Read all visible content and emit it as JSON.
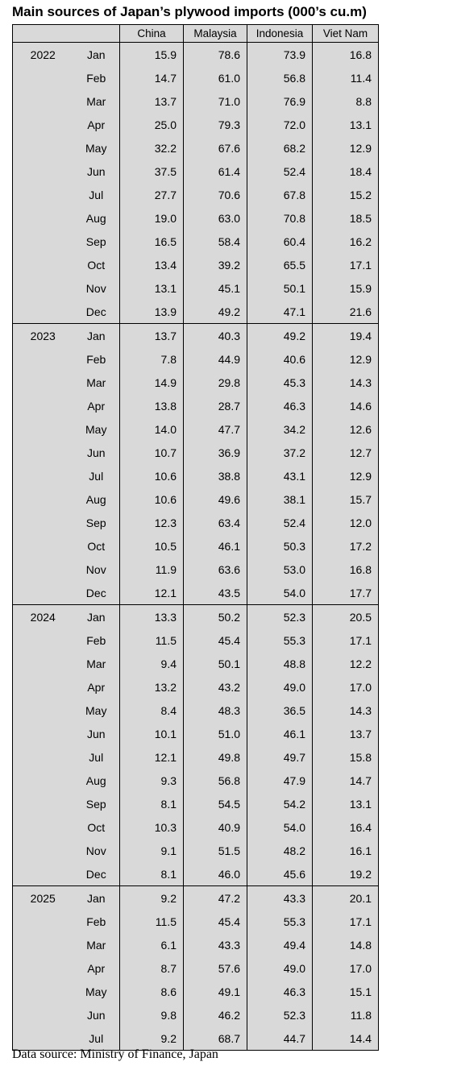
{
  "title": "Main sources of Japan’s plywood imports (000’s cu.m)",
  "table": {
    "columns": [
      "China",
      "Malaysia",
      "Indonesia",
      "Viet Nam"
    ],
    "groups": [
      {
        "year": "2022",
        "rows": [
          {
            "month": "Jan",
            "values": [
              "15.9",
              "78.6",
              "73.9",
              "16.8"
            ]
          },
          {
            "month": "Feb",
            "values": [
              "14.7",
              "61.0",
              "56.8",
              "11.4"
            ]
          },
          {
            "month": "Mar",
            "values": [
              "13.7",
              "71.0",
              "76.9",
              "8.8"
            ]
          },
          {
            "month": "Apr",
            "values": [
              "25.0",
              "79.3",
              "72.0",
              "13.1"
            ]
          },
          {
            "month": "May",
            "values": [
              "32.2",
              "67.6",
              "68.2",
              "12.9"
            ]
          },
          {
            "month": "Jun",
            "values": [
              "37.5",
              "61.4",
              "52.4",
              "18.4"
            ]
          },
          {
            "month": "Jul",
            "values": [
              "27.7",
              "70.6",
              "67.8",
              "15.2"
            ]
          },
          {
            "month": "Aug",
            "values": [
              "19.0",
              "63.0",
              "70.8",
              "18.5"
            ]
          },
          {
            "month": "Sep",
            "values": [
              "16.5",
              "58.4",
              "60.4",
              "16.2"
            ]
          },
          {
            "month": "Oct",
            "values": [
              "13.4",
              "39.2",
              "65.5",
              "17.1"
            ]
          },
          {
            "month": "Nov",
            "values": [
              "13.1",
              "45.1",
              "50.1",
              "15.9"
            ]
          },
          {
            "month": "Dec",
            "values": [
              "13.9",
              "49.2",
              "47.1",
              "21.6"
            ]
          }
        ]
      },
      {
        "year": "2023",
        "rows": [
          {
            "month": "Jan",
            "values": [
              "13.7",
              "40.3",
              "49.2",
              "19.4"
            ]
          },
          {
            "month": "Feb",
            "values": [
              "7.8",
              "44.9",
              "40.6",
              "12.9"
            ]
          },
          {
            "month": "Mar",
            "values": [
              "14.9",
              "29.8",
              "45.3",
              "14.3"
            ]
          },
          {
            "month": "Apr",
            "values": [
              "13.8",
              "28.7",
              "46.3",
              "14.6"
            ]
          },
          {
            "month": "May",
            "values": [
              "14.0",
              "47.7",
              "34.2",
              "12.6"
            ]
          },
          {
            "month": "Jun",
            "values": [
              "10.7",
              "36.9",
              "37.2",
              "12.7"
            ]
          },
          {
            "month": "Jul",
            "values": [
              "10.6",
              "38.8",
              "43.1",
              "12.9"
            ]
          },
          {
            "month": "Aug",
            "values": [
              "10.6",
              "49.6",
              "38.1",
              "15.7"
            ]
          },
          {
            "month": "Sep",
            "values": [
              "12.3",
              "63.4",
              "52.4",
              "12.0"
            ]
          },
          {
            "month": "Oct",
            "values": [
              "10.5",
              "46.1",
              "50.3",
              "17.2"
            ]
          },
          {
            "month": "Nov",
            "values": [
              "11.9",
              "63.6",
              "53.0",
              "16.8"
            ]
          },
          {
            "month": "Dec",
            "values": [
              "12.1",
              "43.5",
              "54.0",
              "17.7"
            ]
          }
        ]
      },
      {
        "year": "2024",
        "rows": [
          {
            "month": "Jan",
            "values": [
              "13.3",
              "50.2",
              "52.3",
              "20.5"
            ]
          },
          {
            "month": "Feb",
            "values": [
              "11.5",
              "45.4",
              "55.3",
              "17.1"
            ]
          },
          {
            "month": "Mar",
            "values": [
              "9.4",
              "50.1",
              "48.8",
              "12.2"
            ]
          },
          {
            "month": "Apr",
            "values": [
              "13.2",
              "43.2",
              "49.0",
              "17.0"
            ]
          },
          {
            "month": "May",
            "values": [
              "8.4",
              "48.3",
              "36.5",
              "14.3"
            ]
          },
          {
            "month": "Jun",
            "values": [
              "10.1",
              "51.0",
              "46.1",
              "13.7"
            ]
          },
          {
            "month": "Jul",
            "values": [
              "12.1",
              "49.8",
              "49.7",
              "15.8"
            ]
          },
          {
            "month": "Aug",
            "values": [
              "9.3",
              "56.8",
              "47.9",
              "14.7"
            ]
          },
          {
            "month": "Sep",
            "values": [
              "8.1",
              "54.5",
              "54.2",
              "13.1"
            ]
          },
          {
            "month": "Oct",
            "values": [
              "10.3",
              "40.9",
              "54.0",
              "16.4"
            ]
          },
          {
            "month": "Nov",
            "values": [
              "9.1",
              "51.5",
              "48.2",
              "16.1"
            ]
          },
          {
            "month": "Dec",
            "values": [
              "8.1",
              "46.0",
              "45.6",
              "19.2"
            ]
          }
        ]
      },
      {
        "year": "2025",
        "rows": [
          {
            "month": "Jan",
            "values": [
              "9.2",
              "47.2",
              "43.3",
              "20.1"
            ]
          },
          {
            "month": "Feb",
            "values": [
              "11.5",
              "45.4",
              "55.3",
              "17.1"
            ]
          },
          {
            "month": "Mar",
            "values": [
              "6.1",
              "43.3",
              "49.4",
              "14.8"
            ]
          },
          {
            "month": "Apr",
            "values": [
              "8.7",
              "57.6",
              "49.0",
              "17.0"
            ]
          },
          {
            "month": "May",
            "values": [
              "8.6",
              "49.1",
              "46.3",
              "15.1"
            ]
          },
          {
            "month": "Jun",
            "values": [
              "9.8",
              "46.2",
              "52.3",
              "11.8"
            ]
          },
          {
            "month": "Jul",
            "values": [
              "9.2",
              "68.7",
              "44.7",
              "14.4"
            ]
          }
        ]
      }
    ]
  },
  "footer": "Data source: Ministry of Finance, Japan"
}
